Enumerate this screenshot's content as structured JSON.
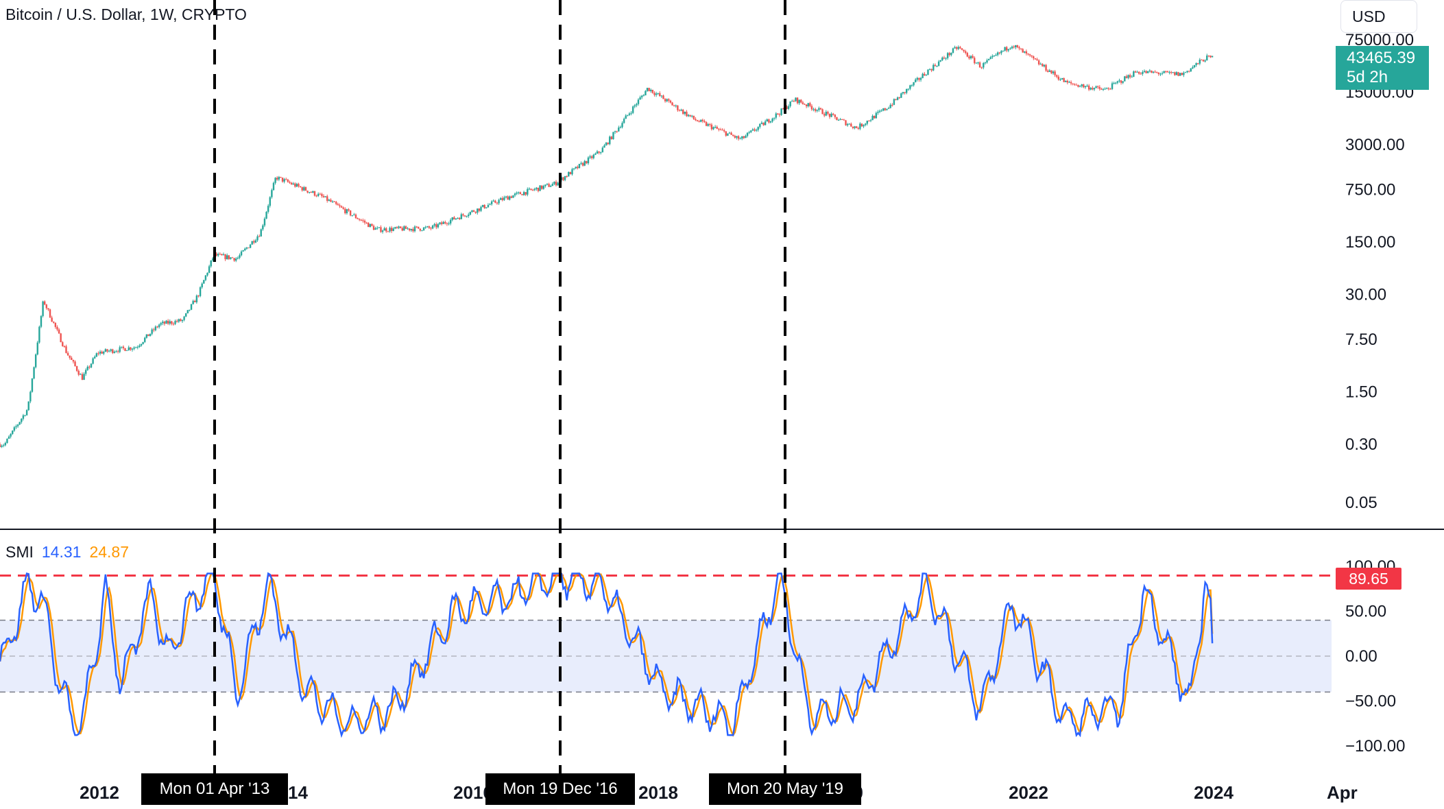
{
  "header": {
    "symbol_title": "Bitcoin / U.S. Dollar, 1W, CRYPTO",
    "currency_button": "USD"
  },
  "last_price": {
    "value": "43465.39",
    "countdown": "5d 2h"
  },
  "colors": {
    "up": "#26a69a",
    "down": "#ef5350",
    "smi_line": "#2962ff",
    "signal_line": "#ff9800",
    "overbought_line": "#f23645",
    "band_fill": "#e8edfc",
    "divider": "#131722"
  },
  "smi_legend": {
    "name": "SMI",
    "smi_value": "14.31",
    "signal_value": "24.87"
  },
  "smi_marker": "89.65",
  "crosshair_dates": [
    "Mon 01 Apr '13",
    "Mon 19 Dec '16",
    "Mon 20 May '19"
  ],
  "chart_data": [
    {
      "type": "candlestick",
      "scale": "log",
      "price_axis_labels": [
        "75000.00",
        "15000.00",
        "3000.00",
        "750.00",
        "150.00",
        "30.00",
        "7.50",
        "1.50",
        "0.30",
        "0.05"
      ],
      "x_axis_labels": [
        "2012",
        "2014",
        "2016",
        "2018",
        "2020",
        "2022",
        "2024",
        "Apr"
      ],
      "series": [
        {
          "name": "close",
          "points": [
            {
              "x": "2011-01",
              "y": 0.3
            },
            {
              "x": "2011-04",
              "y": 0.9
            },
            {
              "x": "2011-06",
              "y": 25
            },
            {
              "x": "2011-09",
              "y": 5
            },
            {
              "x": "2011-11",
              "y": 2.3
            },
            {
              "x": "2012-01",
              "y": 5
            },
            {
              "x": "2012-06",
              "y": 6
            },
            {
              "x": "2012-09",
              "y": 12
            },
            {
              "x": "2012-12",
              "y": 13.5
            },
            {
              "x": "2013-02",
              "y": 30
            },
            {
              "x": "2013-04",
              "y": 100
            },
            {
              "x": "2013-07",
              "y": 90
            },
            {
              "x": "2013-10",
              "y": 200
            },
            {
              "x": "2013-12",
              "y": 1100
            },
            {
              "x": "2014-06",
              "y": 600
            },
            {
              "x": "2015-01",
              "y": 220
            },
            {
              "x": "2015-08",
              "y": 230
            },
            {
              "x": "2016-06",
              "y": 600
            },
            {
              "x": "2016-12",
              "y": 900
            },
            {
              "x": "2017-06",
              "y": 2500
            },
            {
              "x": "2017-12",
              "y": 17000
            },
            {
              "x": "2018-06",
              "y": 6500
            },
            {
              "x": "2018-12",
              "y": 3500
            },
            {
              "x": "2019-05",
              "y": 8000
            },
            {
              "x": "2019-07",
              "y": 12000
            },
            {
              "x": "2020-03",
              "y": 5000
            },
            {
              "x": "2020-07",
              "y": 9500
            },
            {
              "x": "2020-12",
              "y": 28000
            },
            {
              "x": "2021-04",
              "y": 60000
            },
            {
              "x": "2021-07",
              "y": 33000
            },
            {
              "x": "2021-11",
              "y": 65000
            },
            {
              "x": "2022-06",
              "y": 20000
            },
            {
              "x": "2022-11",
              "y": 16000
            },
            {
              "x": "2023-03",
              "y": 28000
            },
            {
              "x": "2023-09",
              "y": 26000
            },
            {
              "x": "2023-12",
              "y": 43000
            },
            {
              "x": "2024-01",
              "y": 43465.39
            }
          ]
        }
      ]
    },
    {
      "type": "line",
      "title": "SMI",
      "y_axis_labels": [
        "100.00",
        "50.00",
        "0.00",
        "−50.00",
        "−100.00"
      ],
      "ylim": [
        -100,
        100
      ],
      "reference_lines": {
        "overbought": 89.65,
        "upper_band": 40,
        "mid": 0,
        "lower_band": -40
      },
      "series": [
        {
          "name": "SMI",
          "points": [
            {
              "x": "2011-01",
              "y": 0
            },
            {
              "x": "2011-04",
              "y": 80
            },
            {
              "x": "2011-06",
              "y": 60
            },
            {
              "x": "2011-08",
              "y": -30
            },
            {
              "x": "2011-10",
              "y": -80
            },
            {
              "x": "2011-11",
              "y": -75
            },
            {
              "x": "2012-02",
              "y": 70
            },
            {
              "x": "2012-04",
              "y": -30
            },
            {
              "x": "2012-08",
              "y": 70
            },
            {
              "x": "2012-10",
              "y": 0
            },
            {
              "x": "2013-01",
              "y": 60
            },
            {
              "x": "2013-04",
              "y": 89.65
            },
            {
              "x": "2013-07",
              "y": -40
            },
            {
              "x": "2013-11",
              "y": 80
            },
            {
              "x": "2014-04",
              "y": -40
            },
            {
              "x": "2014-09",
              "y": -75
            },
            {
              "x": "2015-03",
              "y": -60
            },
            {
              "x": "2015-11",
              "y": 50
            },
            {
              "x": "2016-06",
              "y": 65
            },
            {
              "x": "2016-12",
              "y": 89
            },
            {
              "x": "2017-06",
              "y": 80
            },
            {
              "x": "2018-02",
              "y": -40
            },
            {
              "x": "2018-11",
              "y": -75
            },
            {
              "x": "2019-05",
              "y": 89
            },
            {
              "x": "2019-09",
              "y": -70
            },
            {
              "x": "2020-03",
              "y": -50
            },
            {
              "x": "2020-12",
              "y": 80
            },
            {
              "x": "2021-07",
              "y": -60
            },
            {
              "x": "2021-11",
              "y": 60
            },
            {
              "x": "2022-06",
              "y": -75
            },
            {
              "x": "2023-01",
              "y": -55
            },
            {
              "x": "2023-04",
              "y": 75
            },
            {
              "x": "2023-10",
              "y": -55
            },
            {
              "x": "2023-12",
              "y": 88
            },
            {
              "x": "2024-01",
              "y": 14.31
            }
          ]
        },
        {
          "name": "Signal",
          "points": [
            {
              "x": "2024-01",
              "y": 24.87
            }
          ]
        }
      ]
    }
  ]
}
